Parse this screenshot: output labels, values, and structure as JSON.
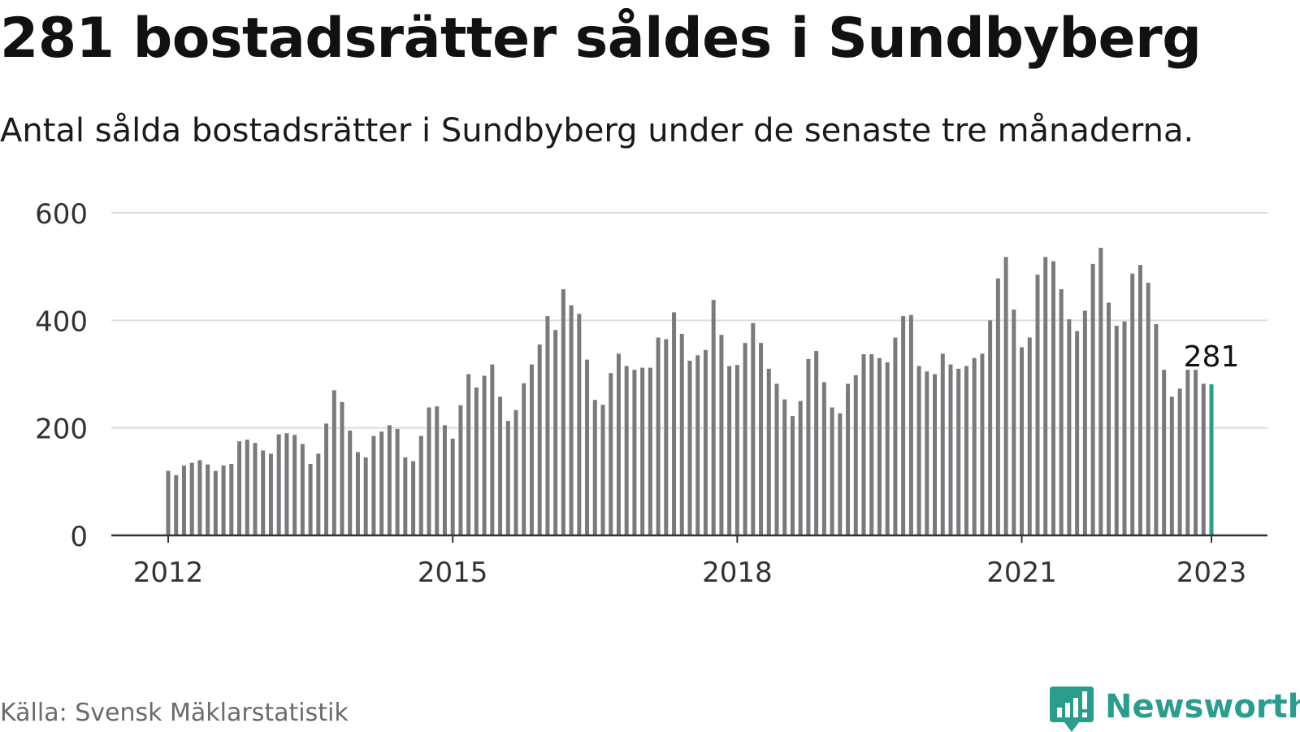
{
  "title": "281 bostadsrätter såldes i Sundbyberg",
  "subtitle": "Antal sålda bostadsrätter i Sundbyberg under de senaste tre månaderna.",
  "source": "Källa: Svensk Mäklarstatistik",
  "brand": {
    "name": "Newsworthy",
    "icon": "newsworthy-logo-icon"
  },
  "colors": {
    "bar": "#7a7a7e",
    "highlight": "#2a9d8f",
    "grid": "#dddddd",
    "axis": "#333333",
    "brand": "#2a9d8f"
  },
  "chart_data": {
    "type": "bar",
    "title": "281 bostadsrätter såldes i Sundbyberg",
    "subtitle": "Antal sålda bostadsrätter i Sundbyberg under de senaste tre månaderna.",
    "xlabel": "",
    "ylabel": "",
    "ylim": [
      0,
      600
    ],
    "yticks": [
      0,
      200,
      400,
      600
    ],
    "xticks": [
      "2012",
      "2015",
      "2018",
      "2021",
      "2023"
    ],
    "grid": true,
    "legend": "none",
    "highlight_label": "281",
    "x_start": "2012-01",
    "x_end": "2023-01",
    "frequency": "monthly",
    "values": [
      120,
      112,
      130,
      135,
      140,
      132,
      120,
      130,
      133,
      175,
      178,
      172,
      158,
      152,
      188,
      190,
      187,
      170,
      133,
      152,
      208,
      270,
      248,
      195,
      155,
      145,
      185,
      193,
      205,
      198,
      145,
      138,
      185,
      238,
      240,
      205,
      180,
      242,
      300,
      275,
      297,
      318,
      258,
      213,
      233,
      283,
      318,
      355,
      408,
      382,
      458,
      428,
      412,
      327,
      252,
      243,
      302,
      338,
      315,
      308,
      312,
      312,
      368,
      365,
      415,
      375,
      325,
      335,
      345,
      438,
      373,
      315,
      317,
      358,
      395,
      358,
      310,
      282,
      253,
      222,
      250,
      328,
      343,
      285,
      238,
      227,
      282,
      298,
      337,
      337,
      330,
      322,
      368,
      408,
      410,
      315,
      305,
      300,
      338,
      318,
      310,
      315,
      330,
      338,
      400,
      478,
      518,
      420,
      350,
      368,
      485,
      518,
      510,
      458,
      402,
      380,
      418,
      505,
      535,
      433,
      390,
      398,
      487,
      503,
      470,
      393,
      308,
      258,
      273,
      308,
      308,
      282,
      281
    ]
  }
}
